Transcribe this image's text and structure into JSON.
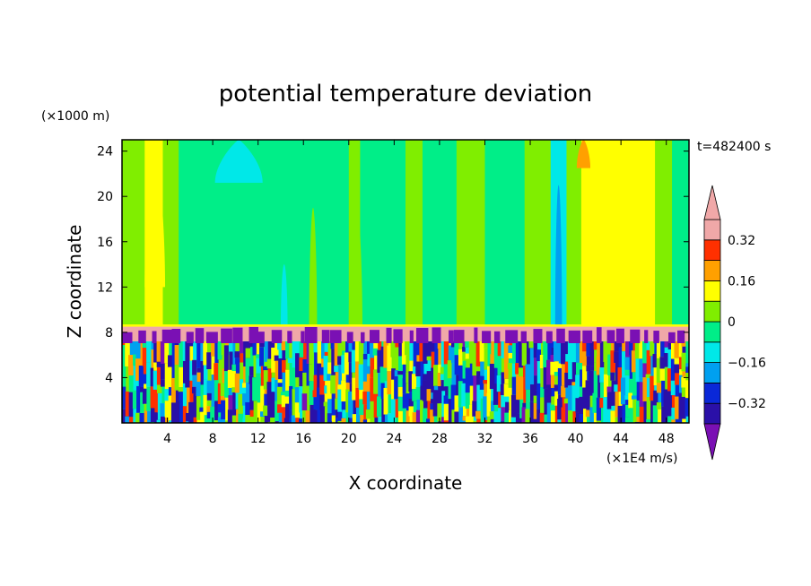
{
  "chart_data": {
    "type": "heatmap",
    "title": "potential temperature deviation",
    "xlabel": "X coordinate",
    "ylabel": "Z coordinate",
    "x_unit": "(×1E4 m/s)",
    "y_unit": "(×1000 m)",
    "time_label": "t=482400 s",
    "xlim": [
      0,
      50
    ],
    "ylim": [
      0,
      25
    ],
    "x_ticks": [
      4,
      8,
      12,
      16,
      20,
      24,
      28,
      32,
      36,
      40,
      44,
      48
    ],
    "y_ticks": [
      4,
      8,
      12,
      16,
      20,
      24
    ],
    "colorbar": {
      "levels": [
        -0.4,
        -0.32,
        -0.24,
        -0.16,
        -0.08,
        0,
        0.08,
        0.16,
        0.24,
        0.32,
        0.4
      ],
      "tick_values": [
        0.32,
        0.16,
        0,
        -0.16,
        -0.32
      ],
      "tick_labels": [
        "0.32",
        "0.16",
        "0",
        "−0.16",
        "−0.32"
      ],
      "colors": [
        "#7a10b4",
        "#2a10a8",
        "#0a28d8",
        "#00a0f0",
        "#00e8e8",
        "#00ee88",
        "#80ee00",
        "#ffff00",
        "#ffa000",
        "#ff3000",
        "#f0a8a8"
      ],
      "extend": "both"
    },
    "upper_layer_columns": [
      {
        "x0": 0,
        "x1": 1.0,
        "c": 6
      },
      {
        "x0": 1.0,
        "x1": 2.0,
        "c": 6
      },
      {
        "x0": 2.0,
        "x1": 3.6,
        "c": 7
      },
      {
        "x0": 3.6,
        "x1": 5.0,
        "c": 6
      },
      {
        "x0": 5.0,
        "x1": 8.2,
        "c": 5
      },
      {
        "x0": 8.2,
        "x1": 12.5,
        "c": 5
      },
      {
        "x0": 12.5,
        "x1": 15.5,
        "c": 5
      },
      {
        "x0": 15.5,
        "x1": 20.0,
        "c": 5
      },
      {
        "x0": 20.0,
        "x1": 21.0,
        "c": 6
      },
      {
        "x0": 21.0,
        "x1": 25.0,
        "c": 5
      },
      {
        "x0": 25.0,
        "x1": 26.5,
        "c": 6
      },
      {
        "x0": 26.5,
        "x1": 29.5,
        "c": 5
      },
      {
        "x0": 29.5,
        "x1": 32.0,
        "c": 6
      },
      {
        "x0": 32.0,
        "x1": 35.5,
        "c": 5
      },
      {
        "x0": 35.5,
        "x1": 37.8,
        "c": 6
      },
      {
        "x0": 37.8,
        "x1": 39.2,
        "c": 4
      },
      {
        "x0": 39.2,
        "x1": 40.5,
        "c": 6
      },
      {
        "x0": 40.5,
        "x1": 42.0,
        "c": 7
      },
      {
        "x0": 42.0,
        "x1": 47.0,
        "c": 7
      },
      {
        "x0": 47.0,
        "x1": 48.5,
        "c": 6
      },
      {
        "x0": 48.5,
        "x1": 50.0,
        "c": 5
      }
    ],
    "upper_features": [
      {
        "x0": 2.0,
        "x1": 3.8,
        "y0": 12.0,
        "y1": 25.0,
        "c": 7
      },
      {
        "x0": 8.2,
        "x1": 12.4,
        "y0": 21.2,
        "y1": 25.0,
        "c": 4
      },
      {
        "x0": 40.1,
        "x1": 41.3,
        "y0": 22.5,
        "y1": 25.0,
        "c": 8
      },
      {
        "x0": 38.2,
        "x1": 38.8,
        "y0": 8.5,
        "y1": 21.0,
        "c": 3
      },
      {
        "x0": 16.5,
        "x1": 17.2,
        "y0": 8.5,
        "y1": 19.0,
        "c": 6
      },
      {
        "x0": 20.0,
        "x1": 21.2,
        "y0": 8.5,
        "y1": 21.5,
        "c": 6
      },
      {
        "x0": 25.3,
        "x1": 26.2,
        "y0": 8.5,
        "y1": 22.5,
        "c": 6
      },
      {
        "x0": 14.0,
        "x1": 14.6,
        "y0": 8.5,
        "y1": 14.0,
        "c": 4
      }
    ],
    "stable_layer": {
      "z0": 7.2,
      "z1": 8.5,
      "c": 10
    },
    "tropopause_level": 8.5,
    "lower_layer_top": 7.2
  }
}
